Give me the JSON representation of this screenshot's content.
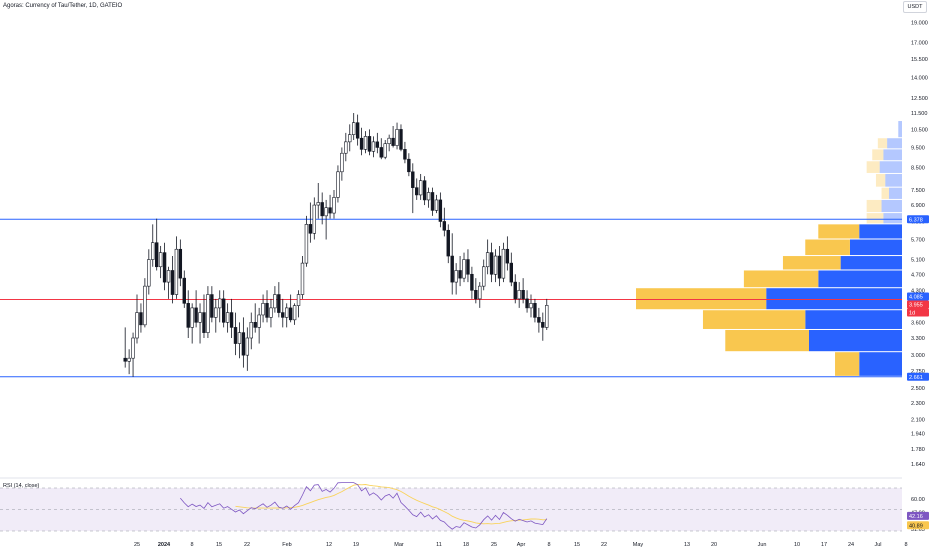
{
  "header": {
    "symbol_title": "Agoras: Currency of Tau/Tether, 1D, GATEIO",
    "currency_button": "USDT"
  },
  "colors": {
    "candle": "#131722",
    "support_resistance": "#2962ff",
    "midline": "#f23645",
    "volume_up": "#f9c74f",
    "volume_down": "#2962ff",
    "rsi_line": "#7e57c2",
    "rsi_ma": "#f9d35c",
    "rsi_band": "#ede7f6",
    "last_price_tag": "#f23645",
    "rsi_tag": "#7e57c2",
    "rsi_ma_tag": "#f9c74f"
  },
  "price_axis": {
    "ticks": [
      "19.000",
      "17.000",
      "15.500",
      "14.000",
      "12.500",
      "11.500",
      "10.500",
      "9.500",
      "8.500",
      "7.500",
      "6.900",
      "6.300",
      "5.700",
      "5.100",
      "4.700",
      "4.300",
      "3.600",
      "3.300",
      "3.000",
      "2.750",
      "2.500",
      "2.300",
      "2.100",
      "1.940",
      "1.780",
      "1.640"
    ],
    "tags": [
      {
        "label": "6.378",
        "kind": "line"
      },
      {
        "label": "4.085",
        "kind": "line"
      },
      {
        "label": "3.955",
        "kind": "price"
      },
      {
        "label": "1d",
        "kind": "countdown"
      },
      {
        "label": "2.661",
        "kind": "line"
      }
    ]
  },
  "rsi_axis": {
    "ticks": [
      "60.00",
      "47.08",
      "31.65"
    ],
    "tags": [
      {
        "label": "42.16",
        "kind": "rsi"
      },
      {
        "label": "40.89",
        "kind": "ma"
      }
    ]
  },
  "rsi_panel": {
    "label": "RSI (14, close)"
  },
  "time_axis": {
    "ticks": [
      {
        "label": "25",
        "bold": false
      },
      {
        "label": "2024",
        "bold": true
      },
      {
        "label": "8",
        "bold": false
      },
      {
        "label": "15",
        "bold": false
      },
      {
        "label": "22",
        "bold": false
      },
      {
        "label": "Feb",
        "bold": false
      },
      {
        "label": "12",
        "bold": false
      },
      {
        "label": "19",
        "bold": false
      },
      {
        "label": "Mar",
        "bold": false
      },
      {
        "label": "11",
        "bold": false
      },
      {
        "label": "18",
        "bold": false
      },
      {
        "label": "25",
        "bold": false
      },
      {
        "label": "Apr",
        "bold": false
      },
      {
        "label": "8",
        "bold": false
      },
      {
        "label": "15",
        "bold": false
      },
      {
        "label": "22",
        "bold": false
      },
      {
        "label": "May",
        "bold": false
      },
      {
        "label": "13",
        "bold": false
      },
      {
        "label": "20",
        "bold": false
      },
      {
        "label": "Jun",
        "bold": false
      },
      {
        "label": "10",
        "bold": false
      },
      {
        "label": "17",
        "bold": false
      },
      {
        "label": "24",
        "bold": false
      },
      {
        "label": "Jul",
        "bold": false
      },
      {
        "label": "8",
        "bold": false
      }
    ]
  },
  "chart_data": {
    "type": "candlestick",
    "symbol": "Agoras: Currency of Tau/Tether",
    "interval": "1D",
    "exchange": "GATEIO",
    "y_scale": "log",
    "levels": {
      "resistance": 6.378,
      "mid": 4.085,
      "support": 2.661
    },
    "last_price": 3.955,
    "candles": [
      {
        "date": "2023-12-22",
        "o": 2.95,
        "h": 3.5,
        "l": 2.8,
        "c": 2.9
      },
      {
        "date": "2023-12-23",
        "o": 2.9,
        "h": 3.1,
        "l": 2.7,
        "c": 2.95
      },
      {
        "date": "2023-12-24",
        "o": 2.95,
        "h": 3.4,
        "l": 2.66,
        "c": 3.3
      },
      {
        "date": "2023-12-25",
        "o": 3.3,
        "h": 4.2,
        "l": 3.2,
        "c": 3.8
      },
      {
        "date": "2023-12-26",
        "o": 3.8,
        "h": 4.0,
        "l": 3.4,
        "c": 3.55
      },
      {
        "date": "2023-12-27",
        "o": 3.55,
        "h": 4.6,
        "l": 3.5,
        "c": 4.4
      },
      {
        "date": "2023-12-28",
        "o": 4.4,
        "h": 5.4,
        "l": 4.2,
        "c": 5.1
      },
      {
        "date": "2023-12-29",
        "o": 5.1,
        "h": 6.2,
        "l": 4.9,
        "c": 5.6
      },
      {
        "date": "2023-12-30",
        "o": 5.6,
        "h": 6.4,
        "l": 4.8,
        "c": 4.9
      },
      {
        "date": "2023-12-31",
        "o": 4.9,
        "h": 5.5,
        "l": 4.6,
        "c": 5.3
      },
      {
        "date": "2024-01-01",
        "o": 5.3,
        "h": 5.6,
        "l": 4.3,
        "c": 4.5
      },
      {
        "date": "2024-01-02",
        "o": 4.5,
        "h": 4.9,
        "l": 4.1,
        "c": 4.8
      },
      {
        "date": "2024-01-03",
        "o": 4.8,
        "h": 5.2,
        "l": 4.0,
        "c": 4.2
      },
      {
        "date": "2024-01-04",
        "o": 4.2,
        "h": 5.8,
        "l": 4.1,
        "c": 5.4
      },
      {
        "date": "2024-01-05",
        "o": 5.4,
        "h": 5.7,
        "l": 4.4,
        "c": 4.6
      },
      {
        "date": "2024-01-06",
        "o": 4.6,
        "h": 4.8,
        "l": 3.9,
        "c": 4.0
      },
      {
        "date": "2024-01-07",
        "o": 4.0,
        "h": 4.3,
        "l": 3.3,
        "c": 3.5
      },
      {
        "date": "2024-01-08",
        "o": 3.5,
        "h": 4.0,
        "l": 3.2,
        "c": 3.9
      },
      {
        "date": "2024-01-09",
        "o": 3.9,
        "h": 4.3,
        "l": 3.5,
        "c": 3.6
      },
      {
        "date": "2024-01-10",
        "o": 3.6,
        "h": 4.0,
        "l": 3.2,
        "c": 3.8
      },
      {
        "date": "2024-01-11",
        "o": 3.8,
        "h": 4.2,
        "l": 3.3,
        "c": 3.4
      },
      {
        "date": "2024-01-12",
        "o": 3.4,
        "h": 4.4,
        "l": 3.3,
        "c": 4.2
      },
      {
        "date": "2024-01-13",
        "o": 4.2,
        "h": 4.4,
        "l": 3.6,
        "c": 3.7
      },
      {
        "date": "2024-01-14",
        "o": 3.7,
        "h": 4.1,
        "l": 3.4,
        "c": 3.9
      },
      {
        "date": "2024-01-15",
        "o": 3.9,
        "h": 4.3,
        "l": 3.6,
        "c": 4.1
      },
      {
        "date": "2024-01-16",
        "o": 4.1,
        "h": 4.3,
        "l": 3.5,
        "c": 3.6
      },
      {
        "date": "2024-01-17",
        "o": 3.6,
        "h": 4.0,
        "l": 3.4,
        "c": 3.8
      },
      {
        "date": "2024-01-18",
        "o": 3.8,
        "h": 4.1,
        "l": 3.3,
        "c": 3.5
      },
      {
        "date": "2024-01-19",
        "o": 3.5,
        "h": 3.8,
        "l": 3.0,
        "c": 3.2
      },
      {
        "date": "2024-01-20",
        "o": 3.2,
        "h": 3.6,
        "l": 2.95,
        "c": 3.4
      },
      {
        "date": "2024-01-21",
        "o": 3.4,
        "h": 3.7,
        "l": 2.8,
        "c": 3.0
      },
      {
        "date": "2024-01-22",
        "o": 3.0,
        "h": 3.5,
        "l": 2.75,
        "c": 3.3
      },
      {
        "date": "2024-01-23",
        "o": 3.3,
        "h": 3.8,
        "l": 3.1,
        "c": 3.6
      },
      {
        "date": "2024-01-24",
        "o": 3.6,
        "h": 4.0,
        "l": 3.4,
        "c": 3.5
      },
      {
        "date": "2024-01-25",
        "o": 3.5,
        "h": 3.9,
        "l": 3.2,
        "c": 3.75
      },
      {
        "date": "2024-01-26",
        "o": 3.75,
        "h": 4.2,
        "l": 3.6,
        "c": 4.0
      },
      {
        "date": "2024-01-27",
        "o": 4.0,
        "h": 4.3,
        "l": 3.6,
        "c": 3.7
      },
      {
        "date": "2024-01-28",
        "o": 3.7,
        "h": 4.1,
        "l": 3.5,
        "c": 3.9
      },
      {
        "date": "2024-01-29",
        "o": 3.9,
        "h": 4.4,
        "l": 3.8,
        "c": 4.2
      },
      {
        "date": "2024-01-30",
        "o": 4.2,
        "h": 4.5,
        "l": 3.7,
        "c": 3.8
      },
      {
        "date": "2024-01-31",
        "o": 3.8,
        "h": 4.1,
        "l": 3.5,
        "c": 3.7
      },
      {
        "date": "2024-02-01",
        "o": 3.7,
        "h": 4.0,
        "l": 3.5,
        "c": 3.9
      },
      {
        "date": "2024-02-02",
        "o": 3.9,
        "h": 4.2,
        "l": 3.6,
        "c": 3.65
      },
      {
        "date": "2024-02-03",
        "o": 3.65,
        "h": 4.0,
        "l": 3.55,
        "c": 3.95
      },
      {
        "date": "2024-02-04",
        "o": 3.95,
        "h": 4.3,
        "l": 3.7,
        "c": 4.2
      },
      {
        "date": "2024-02-05",
        "o": 4.2,
        "h": 5.2,
        "l": 4.1,
        "c": 5.0
      },
      {
        "date": "2024-02-06",
        "o": 5.0,
        "h": 6.5,
        "l": 4.9,
        "c": 6.2
      },
      {
        "date": "2024-02-07",
        "o": 6.2,
        "h": 7.0,
        "l": 5.6,
        "c": 5.9
      },
      {
        "date": "2024-02-08",
        "o": 5.9,
        "h": 7.2,
        "l": 5.7,
        "c": 6.9
      },
      {
        "date": "2024-02-09",
        "o": 6.9,
        "h": 7.8,
        "l": 6.4,
        "c": 7.0
      },
      {
        "date": "2024-02-10",
        "o": 7.0,
        "h": 7.4,
        "l": 6.2,
        "c": 6.5
      },
      {
        "date": "2024-02-11",
        "o": 6.5,
        "h": 7.1,
        "l": 5.7,
        "c": 6.8
      },
      {
        "date": "2024-02-12",
        "o": 6.8,
        "h": 7.3,
        "l": 6.4,
        "c": 6.6
      },
      {
        "date": "2024-02-13",
        "o": 6.6,
        "h": 7.5,
        "l": 6.4,
        "c": 7.2
      },
      {
        "date": "2024-02-14",
        "o": 7.2,
        "h": 8.6,
        "l": 7.0,
        "c": 8.3
      },
      {
        "date": "2024-02-15",
        "o": 8.3,
        "h": 9.5,
        "l": 7.9,
        "c": 9.2
      },
      {
        "date": "2024-02-16",
        "o": 9.2,
        "h": 10.3,
        "l": 8.8,
        "c": 9.8
      },
      {
        "date": "2024-02-17",
        "o": 9.8,
        "h": 10.8,
        "l": 9.3,
        "c": 10.2
      },
      {
        "date": "2024-02-18",
        "o": 10.2,
        "h": 11.5,
        "l": 9.9,
        "c": 10.9
      },
      {
        "date": "2024-02-19",
        "o": 10.9,
        "h": 11.4,
        "l": 9.6,
        "c": 10.0
      },
      {
        "date": "2024-02-20",
        "o": 10.0,
        "h": 10.6,
        "l": 9.1,
        "c": 9.4
      },
      {
        "date": "2024-02-21",
        "o": 9.4,
        "h": 10.4,
        "l": 9.2,
        "c": 10.1
      },
      {
        "date": "2024-02-22",
        "o": 10.1,
        "h": 10.5,
        "l": 9.1,
        "c": 9.3
      },
      {
        "date": "2024-02-23",
        "o": 9.3,
        "h": 10.1,
        "l": 9.0,
        "c": 9.8
      },
      {
        "date": "2024-02-24",
        "o": 9.8,
        "h": 10.3,
        "l": 9.2,
        "c": 9.5
      },
      {
        "date": "2024-02-25",
        "o": 9.5,
        "h": 10.0,
        "l": 8.9,
        "c": 9.0
      },
      {
        "date": "2024-02-26",
        "o": 9.0,
        "h": 9.9,
        "l": 8.9,
        "c": 9.7
      },
      {
        "date": "2024-02-27",
        "o": 9.7,
        "h": 10.2,
        "l": 9.3,
        "c": 10.0
      },
      {
        "date": "2024-02-28",
        "o": 10.0,
        "h": 10.7,
        "l": 9.5,
        "c": 9.6
      },
      {
        "date": "2024-02-29",
        "o": 9.6,
        "h": 10.9,
        "l": 9.4,
        "c": 10.5
      },
      {
        "date": "2024-03-01",
        "o": 10.5,
        "h": 10.8,
        "l": 9.3,
        "c": 9.4
      },
      {
        "date": "2024-03-02",
        "o": 9.4,
        "h": 9.8,
        "l": 8.7,
        "c": 8.9
      },
      {
        "date": "2024-03-03",
        "o": 8.9,
        "h": 9.2,
        "l": 8.1,
        "c": 8.3
      },
      {
        "date": "2024-03-04",
        "o": 8.3,
        "h": 8.7,
        "l": 6.6,
        "c": 7.6
      },
      {
        "date": "2024-03-05",
        "o": 7.6,
        "h": 8.0,
        "l": 7.1,
        "c": 7.3
      },
      {
        "date": "2024-03-06",
        "o": 7.3,
        "h": 8.2,
        "l": 7.1,
        "c": 7.9
      },
      {
        "date": "2024-03-07",
        "o": 7.9,
        "h": 8.1,
        "l": 6.9,
        "c": 7.1
      },
      {
        "date": "2024-03-08",
        "o": 7.1,
        "h": 7.6,
        "l": 6.8,
        "c": 7.4
      },
      {
        "date": "2024-03-09",
        "o": 7.4,
        "h": 7.6,
        "l": 6.5,
        "c": 6.7
      },
      {
        "date": "2024-03-10",
        "o": 6.7,
        "h": 7.3,
        "l": 6.6,
        "c": 7.1
      },
      {
        "date": "2024-03-11",
        "o": 7.1,
        "h": 7.4,
        "l": 6.1,
        "c": 6.3
      },
      {
        "date": "2024-03-12",
        "o": 6.3,
        "h": 6.8,
        "l": 5.8,
        "c": 6.0
      },
      {
        "date": "2024-03-13",
        "o": 6.0,
        "h": 6.2,
        "l": 5.0,
        "c": 5.2
      },
      {
        "date": "2024-03-14",
        "o": 5.2,
        "h": 5.9,
        "l": 4.2,
        "c": 4.5
      },
      {
        "date": "2024-03-15",
        "o": 4.5,
        "h": 5.0,
        "l": 4.2,
        "c": 4.8
      },
      {
        "date": "2024-03-16",
        "o": 4.8,
        "h": 5.2,
        "l": 4.4,
        "c": 4.6
      },
      {
        "date": "2024-03-17",
        "o": 4.6,
        "h": 5.3,
        "l": 4.5,
        "c": 5.1
      },
      {
        "date": "2024-03-18",
        "o": 5.1,
        "h": 5.4,
        "l": 4.5,
        "c": 4.7
      },
      {
        "date": "2024-03-19",
        "o": 4.7,
        "h": 4.9,
        "l": 4.1,
        "c": 4.3
      },
      {
        "date": "2024-03-20",
        "o": 4.3,
        "h": 4.6,
        "l": 4.0,
        "c": 4.1
      },
      {
        "date": "2024-03-21",
        "o": 4.1,
        "h": 4.5,
        "l": 3.9,
        "c": 4.4
      },
      {
        "date": "2024-03-22",
        "o": 4.4,
        "h": 5.1,
        "l": 4.3,
        "c": 4.9
      },
      {
        "date": "2024-03-23",
        "o": 4.9,
        "h": 5.7,
        "l": 4.7,
        "c": 5.3
      },
      {
        "date": "2024-03-24",
        "o": 5.3,
        "h": 5.6,
        "l": 4.5,
        "c": 4.7
      },
      {
        "date": "2024-03-25",
        "o": 4.7,
        "h": 5.4,
        "l": 4.5,
        "c": 5.2
      },
      {
        "date": "2024-03-26",
        "o": 5.2,
        "h": 5.5,
        "l": 4.4,
        "c": 4.6
      },
      {
        "date": "2024-03-27",
        "o": 4.6,
        "h": 5.6,
        "l": 4.5,
        "c": 5.4
      },
      {
        "date": "2024-03-28",
        "o": 5.4,
        "h": 5.8,
        "l": 4.8,
        "c": 5.0
      },
      {
        "date": "2024-03-29",
        "o": 5.0,
        "h": 5.3,
        "l": 4.4,
        "c": 4.5
      },
      {
        "date": "2024-03-30",
        "o": 4.5,
        "h": 4.7,
        "l": 4.0,
        "c": 4.1
      },
      {
        "date": "2024-03-31",
        "o": 4.1,
        "h": 4.5,
        "l": 3.9,
        "c": 4.3
      },
      {
        "date": "2024-04-01",
        "o": 4.3,
        "h": 4.6,
        "l": 4.0,
        "c": 4.1
      },
      {
        "date": "2024-04-02",
        "o": 4.1,
        "h": 4.3,
        "l": 3.8,
        "c": 3.9
      },
      {
        "date": "2024-04-03",
        "o": 3.9,
        "h": 4.2,
        "l": 3.7,
        "c": 4.0
      },
      {
        "date": "2024-04-04",
        "o": 4.0,
        "h": 4.1,
        "l": 3.6,
        "c": 3.7
      },
      {
        "date": "2024-04-05",
        "o": 3.7,
        "h": 3.9,
        "l": 3.4,
        "c": 3.6
      },
      {
        "date": "2024-04-06",
        "o": 3.6,
        "h": 3.8,
        "l": 3.25,
        "c": 3.5
      },
      {
        "date": "2024-04-07",
        "o": 3.5,
        "h": 4.1,
        "l": 3.45,
        "c": 3.955
      }
    ]
  },
  "volume_profile": {
    "levels": [
      {
        "low": 10.0,
        "high": 11.0,
        "up": 0.0,
        "down": 0.02
      },
      {
        "low": 9.4,
        "high": 10.0,
        "up": 0.05,
        "down": 0.08
      },
      {
        "low": 8.8,
        "high": 9.4,
        "up": 0.06,
        "down": 0.1
      },
      {
        "low": 8.2,
        "high": 8.8,
        "up": 0.07,
        "down": 0.12
      },
      {
        "low": 7.6,
        "high": 8.2,
        "up": 0.05,
        "down": 0.09
      },
      {
        "low": 7.1,
        "high": 7.6,
        "up": 0.04,
        "down": 0.07
      },
      {
        "low": 6.6,
        "high": 7.1,
        "up": 0.08,
        "down": 0.11
      },
      {
        "low": 6.2,
        "high": 6.6,
        "up": 0.09,
        "down": 0.1
      },
      {
        "low": 5.7,
        "high": 6.2,
        "up": 0.22,
        "down": 0.23
      },
      {
        "low": 5.2,
        "high": 5.7,
        "up": 0.24,
        "down": 0.28
      },
      {
        "low": 4.8,
        "high": 5.2,
        "up": 0.31,
        "down": 0.33
      },
      {
        "low": 4.35,
        "high": 4.8,
        "up": 0.4,
        "down": 0.45
      },
      {
        "low": 3.85,
        "high": 4.35,
        "up": 0.7,
        "down": 0.73
      },
      {
        "low": 3.45,
        "high": 3.85,
        "up": 0.55,
        "down": 0.52
      },
      {
        "low": 3.05,
        "high": 3.45,
        "up": 0.45,
        "down": 0.5
      },
      {
        "low": 2.66,
        "high": 3.05,
        "up": 0.13,
        "down": 0.23
      }
    ]
  },
  "rsi": {
    "period": 14,
    "source": "close",
    "upper": 70,
    "lower": 30,
    "mid": 50,
    "last": 42.16,
    "ma_last": 40.89
  }
}
